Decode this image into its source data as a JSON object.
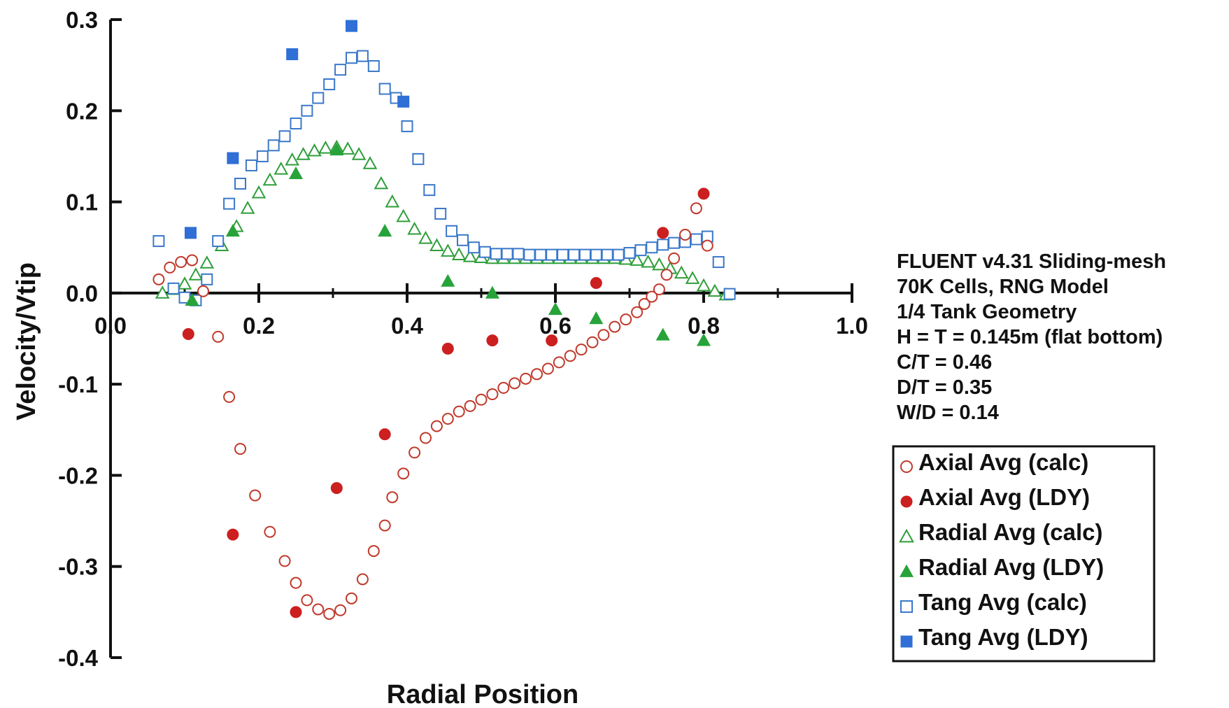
{
  "chart_data": {
    "type": "scatter",
    "xlabel": "Radial Position",
    "ylabel": "Velocity/Vtip",
    "xlim": [
      0.0,
      1.0
    ],
    "ylim": [
      -0.4,
      0.3
    ],
    "x_ticks": [
      "0.0",
      "0.2",
      "0.4",
      "0.6",
      "0.8",
      "1.0"
    ],
    "y_ticks": [
      "0.3",
      "0.2",
      "0.1",
      "0.0",
      "-0.1",
      "-0.2",
      "-0.3",
      "-0.4"
    ],
    "grid": false,
    "legend_position": "bottom-right",
    "annotation": [
      "FLUENT v4.31 Sliding-mesh",
      "70K Cells, RNG Model",
      "1/4 Tank Geometry",
      "H = T = 0.145m (flat bottom)",
      "C/T =  0.46",
      "D/T = 0.35",
      "W/D = 0.14"
    ],
    "series": [
      {
        "name": "Axial Avg (calc)",
        "marker": "circle",
        "filled": false,
        "color": "#c0392b",
        "points": [
          [
            0.065,
            0.015
          ],
          [
            0.08,
            0.028
          ],
          [
            0.095,
            0.034
          ],
          [
            0.11,
            0.036
          ],
          [
            0.125,
            0.002
          ],
          [
            0.145,
            -0.048
          ],
          [
            0.16,
            -0.114
          ],
          [
            0.175,
            -0.171
          ],
          [
            0.195,
            -0.222
          ],
          [
            0.215,
            -0.262
          ],
          [
            0.235,
            -0.294
          ],
          [
            0.25,
            -0.318
          ],
          [
            0.265,
            -0.337
          ],
          [
            0.28,
            -0.347
          ],
          [
            0.295,
            -0.352
          ],
          [
            0.31,
            -0.348
          ],
          [
            0.325,
            -0.335
          ],
          [
            0.34,
            -0.314
          ],
          [
            0.355,
            -0.283
          ],
          [
            0.37,
            -0.255
          ],
          [
            0.38,
            -0.224
          ],
          [
            0.395,
            -0.198
          ],
          [
            0.41,
            -0.175
          ],
          [
            0.425,
            -0.159
          ],
          [
            0.44,
            -0.146
          ],
          [
            0.455,
            -0.138
          ],
          [
            0.47,
            -0.13
          ],
          [
            0.485,
            -0.124
          ],
          [
            0.5,
            -0.117
          ],
          [
            0.515,
            -0.111
          ],
          [
            0.53,
            -0.104
          ],
          [
            0.545,
            -0.099
          ],
          [
            0.56,
            -0.094
          ],
          [
            0.575,
            -0.089
          ],
          [
            0.59,
            -0.083
          ],
          [
            0.605,
            -0.076
          ],
          [
            0.62,
            -0.069
          ],
          [
            0.635,
            -0.062
          ],
          [
            0.65,
            -0.054
          ],
          [
            0.665,
            -0.046
          ],
          [
            0.68,
            -0.037
          ],
          [
            0.695,
            -0.029
          ],
          [
            0.71,
            -0.021
          ],
          [
            0.72,
            -0.012
          ],
          [
            0.73,
            -0.004
          ],
          [
            0.74,
            0.004
          ],
          [
            0.75,
            0.02
          ],
          [
            0.76,
            0.038
          ],
          [
            0.775,
            0.064
          ],
          [
            0.79,
            0.093
          ],
          [
            0.805,
            0.052
          ]
        ]
      },
      {
        "name": "Axial Avg (LDY)",
        "marker": "circle",
        "filled": true,
        "color": "#cc1f1f",
        "points": [
          [
            0.105,
            -0.045
          ],
          [
            0.165,
            -0.265
          ],
          [
            0.25,
            -0.35
          ],
          [
            0.305,
            -0.214
          ],
          [
            0.37,
            -0.155
          ],
          [
            0.455,
            -0.061
          ],
          [
            0.515,
            -0.052
          ],
          [
            0.595,
            -0.052
          ],
          [
            0.655,
            0.011
          ],
          [
            0.745,
            0.066
          ],
          [
            0.8,
            0.109
          ]
        ]
      },
      {
        "name": "Radial Avg (calc)",
        "marker": "triangle",
        "filled": false,
        "color": "#2e9e3a",
        "points": [
          [
            0.07,
            0.0
          ],
          [
            0.085,
            0.004
          ],
          [
            0.1,
            0.01
          ],
          [
            0.115,
            0.02
          ],
          [
            0.13,
            0.033
          ],
          [
            0.15,
            0.052
          ],
          [
            0.17,
            0.073
          ],
          [
            0.185,
            0.093
          ],
          [
            0.2,
            0.11
          ],
          [
            0.215,
            0.124
          ],
          [
            0.23,
            0.136
          ],
          [
            0.245,
            0.146
          ],
          [
            0.26,
            0.152
          ],
          [
            0.275,
            0.156
          ],
          [
            0.29,
            0.159
          ],
          [
            0.305,
            0.16
          ],
          [
            0.32,
            0.158
          ],
          [
            0.335,
            0.152
          ],
          [
            0.35,
            0.142
          ],
          [
            0.365,
            0.12
          ],
          [
            0.38,
            0.1
          ],
          [
            0.395,
            0.084
          ],
          [
            0.41,
            0.07
          ],
          [
            0.425,
            0.06
          ],
          [
            0.44,
            0.052
          ],
          [
            0.455,
            0.046
          ],
          [
            0.47,
            0.042
          ],
          [
            0.485,
            0.04
          ],
          [
            0.5,
            0.039
          ],
          [
            0.515,
            0.038
          ],
          [
            0.53,
            0.038
          ],
          [
            0.545,
            0.038
          ],
          [
            0.56,
            0.038
          ],
          [
            0.575,
            0.038
          ],
          [
            0.59,
            0.038
          ],
          [
            0.605,
            0.038
          ],
          [
            0.62,
            0.038
          ],
          [
            0.635,
            0.038
          ],
          [
            0.65,
            0.038
          ],
          [
            0.665,
            0.038
          ],
          [
            0.68,
            0.038
          ],
          [
            0.695,
            0.037
          ],
          [
            0.71,
            0.036
          ],
          [
            0.725,
            0.034
          ],
          [
            0.74,
            0.031
          ],
          [
            0.755,
            0.027
          ],
          [
            0.77,
            0.022
          ],
          [
            0.785,
            0.016
          ],
          [
            0.8,
            0.008
          ],
          [
            0.815,
            0.002
          ],
          [
            0.83,
            -0.002
          ]
        ]
      },
      {
        "name": "Radial Avg (LDY)",
        "marker": "triangle",
        "filled": true,
        "color": "#27a33a",
        "points": [
          [
            0.11,
            -0.008
          ],
          [
            0.165,
            0.068
          ],
          [
            0.25,
            0.131
          ],
          [
            0.305,
            0.157
          ],
          [
            0.37,
            0.068
          ],
          [
            0.455,
            0.013
          ],
          [
            0.515,
            0.0
          ],
          [
            0.6,
            -0.018
          ],
          [
            0.655,
            -0.028
          ],
          [
            0.745,
            -0.046
          ],
          [
            0.8,
            -0.052
          ]
        ]
      },
      {
        "name": "Tang Avg (calc)",
        "marker": "square",
        "filled": false,
        "color": "#3a78c9",
        "points": [
          [
            0.065,
            0.057
          ],
          [
            0.085,
            0.005
          ],
          [
            0.1,
            -0.005
          ],
          [
            0.115,
            -0.008
          ],
          [
            0.13,
            0.015
          ],
          [
            0.145,
            0.057
          ],
          [
            0.16,
            0.098
          ],
          [
            0.175,
            0.12
          ],
          [
            0.19,
            0.14
          ],
          [
            0.205,
            0.15
          ],
          [
            0.22,
            0.162
          ],
          [
            0.235,
            0.172
          ],
          [
            0.25,
            0.186
          ],
          [
            0.265,
            0.2
          ],
          [
            0.28,
            0.214
          ],
          [
            0.295,
            0.229
          ],
          [
            0.31,
            0.245
          ],
          [
            0.325,
            0.258
          ],
          [
            0.34,
            0.26
          ],
          [
            0.355,
            0.249
          ],
          [
            0.37,
            0.224
          ],
          [
            0.385,
            0.214
          ],
          [
            0.4,
            0.183
          ],
          [
            0.415,
            0.147
          ],
          [
            0.43,
            0.113
          ],
          [
            0.445,
            0.087
          ],
          [
            0.46,
            0.068
          ],
          [
            0.475,
            0.058
          ],
          [
            0.49,
            0.05
          ],
          [
            0.505,
            0.045
          ],
          [
            0.52,
            0.043
          ],
          [
            0.535,
            0.043
          ],
          [
            0.55,
            0.043
          ],
          [
            0.565,
            0.042
          ],
          [
            0.58,
            0.042
          ],
          [
            0.595,
            0.042
          ],
          [
            0.61,
            0.042
          ],
          [
            0.625,
            0.042
          ],
          [
            0.64,
            0.042
          ],
          [
            0.655,
            0.042
          ],
          [
            0.67,
            0.042
          ],
          [
            0.685,
            0.042
          ],
          [
            0.7,
            0.044
          ],
          [
            0.715,
            0.047
          ],
          [
            0.73,
            0.05
          ],
          [
            0.745,
            0.053
          ],
          [
            0.76,
            0.055
          ],
          [
            0.775,
            0.056
          ],
          [
            0.79,
            0.059
          ],
          [
            0.805,
            0.062
          ],
          [
            0.82,
            0.034
          ],
          [
            0.835,
            -0.001
          ]
        ]
      },
      {
        "name": "Tang Avg (LDY)",
        "marker": "square",
        "filled": true,
        "color": "#2f6fd6",
        "points": [
          [
            0.108,
            0.066
          ],
          [
            0.165,
            0.148
          ],
          [
            0.245,
            0.262
          ],
          [
            0.325,
            0.293
          ],
          [
            0.395,
            0.21
          ]
        ]
      }
    ]
  }
}
